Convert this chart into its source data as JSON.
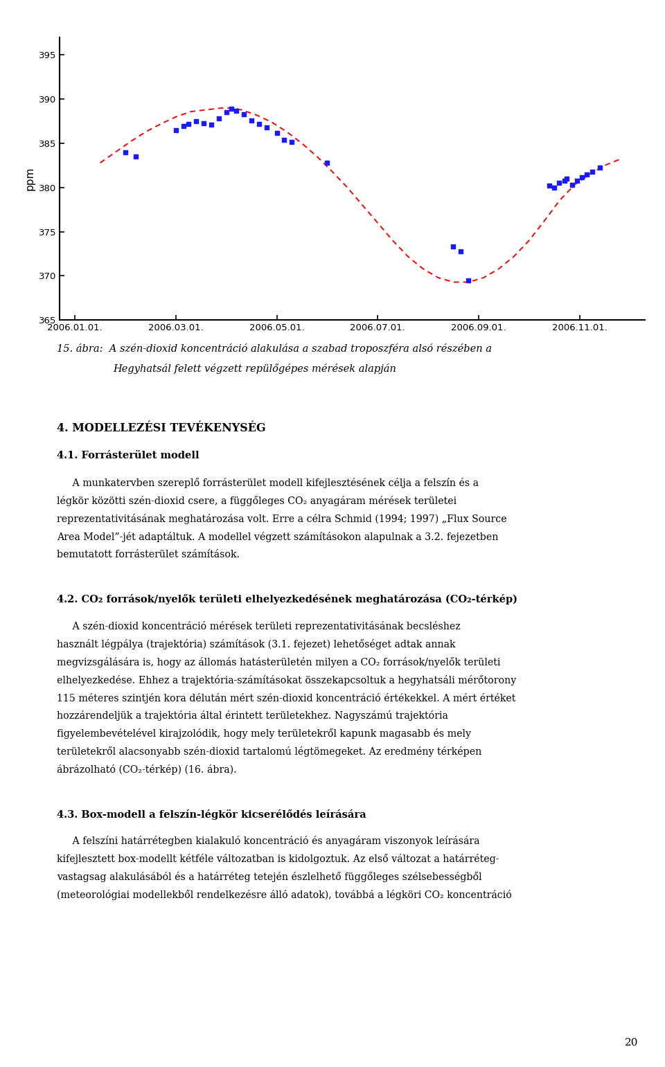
{
  "ylabel": "ppm",
  "ylim": [
    365,
    397
  ],
  "yticks": [
    365,
    370,
    375,
    380,
    385,
    390,
    395
  ],
  "xtick_labels": [
    "2006.01.01.",
    "2006.03.01.",
    "2006.05.01.",
    "2006.07.01.",
    "2006.09.01.",
    "2006.11.01."
  ],
  "xtick_pos": [
    0,
    2,
    4,
    6,
    8,
    10
  ],
  "xlim": [
    -0.3,
    11.3
  ],
  "blue_points": [
    [
      1.0,
      384.0
    ],
    [
      1.2,
      383.5
    ],
    [
      2.0,
      386.5
    ],
    [
      2.15,
      387.0
    ],
    [
      2.25,
      387.2
    ],
    [
      2.4,
      387.5
    ],
    [
      2.55,
      387.3
    ],
    [
      2.7,
      387.1
    ],
    [
      2.85,
      387.8
    ],
    [
      3.0,
      388.5
    ],
    [
      3.1,
      388.9
    ],
    [
      3.2,
      388.7
    ],
    [
      3.35,
      388.3
    ],
    [
      3.5,
      387.6
    ],
    [
      3.65,
      387.2
    ],
    [
      3.8,
      386.8
    ],
    [
      4.0,
      386.2
    ],
    [
      4.15,
      385.4
    ],
    [
      4.3,
      385.2
    ],
    [
      5.0,
      382.8
    ],
    [
      7.5,
      373.3
    ],
    [
      7.65,
      372.8
    ],
    [
      7.8,
      369.5
    ],
    [
      9.4,
      380.2
    ],
    [
      9.5,
      380.0
    ],
    [
      9.6,
      380.5
    ],
    [
      9.7,
      380.8
    ],
    [
      9.75,
      381.0
    ],
    [
      9.85,
      380.3
    ],
    [
      9.95,
      380.8
    ],
    [
      10.05,
      381.2
    ],
    [
      10.15,
      381.5
    ],
    [
      10.25,
      381.8
    ],
    [
      10.4,
      382.3
    ]
  ],
  "red_dashed_x": [
    0.5,
    0.8,
    1.1,
    1.4,
    1.7,
    2.0,
    2.3,
    2.6,
    2.9,
    3.1,
    3.3,
    3.6,
    3.9,
    4.2,
    4.5,
    4.8,
    5.1,
    5.4,
    5.7,
    6.0,
    6.3,
    6.6,
    6.9,
    7.2,
    7.5,
    7.8,
    8.1,
    8.4,
    8.7,
    9.0,
    9.3,
    9.6,
    9.9,
    10.2,
    10.5,
    10.8
  ],
  "red_dashed_y": [
    382.8,
    384.0,
    385.2,
    386.3,
    387.2,
    388.0,
    388.6,
    388.8,
    389.0,
    389.0,
    388.8,
    388.2,
    387.4,
    386.3,
    385.0,
    383.5,
    381.8,
    380.0,
    378.0,
    376.0,
    374.0,
    372.2,
    370.8,
    369.8,
    369.3,
    369.3,
    369.8,
    370.8,
    372.2,
    374.0,
    376.2,
    378.5,
    380.3,
    381.5,
    382.5,
    383.2
  ],
  "caption_line1": "15. ábra:  A szén-dioxid koncentráció alakulása a szabad troposzféra alsó részében a",
  "caption_line2": "Hegyhatsál felett végzett repülőgépes mérések alapján",
  "section_heading": "4. MODELLEZÉSI TEVÉKENYSÉG",
  "sub1_heading": "4.1. Forrásterület modell",
  "para1_lines": [
    "     A munkatervben szereplő forrásterület modell kifejlesztésének célja a felszín és a",
    "légkör közötti szén-dioxid csere, a függőleges CO₂ anyagáram mérések területei",
    "reprezentativitásának meghatározása volt. Erre a célra Schmid (1994; 1997) „Flux Source",
    "Area Model”-jét adaptáltuk. A modellel végzett számításokon alapulnak a 3.2. fejezetben",
    "bemutatott forrásterület számítások."
  ],
  "sub2_heading": "4.2. CO₂ források/nyelők területi elhelyezkedésének meghatározása (CO₂-térkép)",
  "para2_lines": [
    "     A szén-dioxid koncentráció mérések területi reprezentativitásának becsléshez",
    "használt légpálya (trajektória) számítások (3.1. fejezet) lehetőséget adtak annak",
    "megvizsgálására is, hogy az állomás hatásterületén milyen a CO₂ források/nyelők területi",
    "elhelyezkedése. Ehhez a trajektória-számításokat összekapcsoltuk a hegyhatsáli mérőtorony",
    "115 méteres szintjén kora délután mért szén-dioxid koncentráció értékekkel. A mért értéket",
    "hozzárendeljük a trajektória által érintett területekhez. Nagyszámú trajektória",
    "figyelembevételével kirajzolódik, hogy mely területekről kapunk magasabb és mely",
    "területekről alacsonyabb szén-dioxid tartalomú légtömegeket. Az eredmény térképen",
    "ábrázolható (CO₂-térkép) (16. ábra)."
  ],
  "sub3_heading": "4.3. Box-modell a felszín-légkör kicserélődés leírására",
  "para3_lines": [
    "     A felszíni határrétegben kialakuló koncentráció és anyagáram viszonyok leírására",
    "kifejlesztett box-modellt kétféle változatban is kidolgoztuk. Az első változat a határréteg-",
    "vastagsag alakulásából és a határréteg tetején észlelhető függőleges szélsebességből",
    "(meteorológiai modellekből rendelkezésre álló adatok), továbbá a légköri CO₂ koncentráció"
  ],
  "page_number": "20"
}
